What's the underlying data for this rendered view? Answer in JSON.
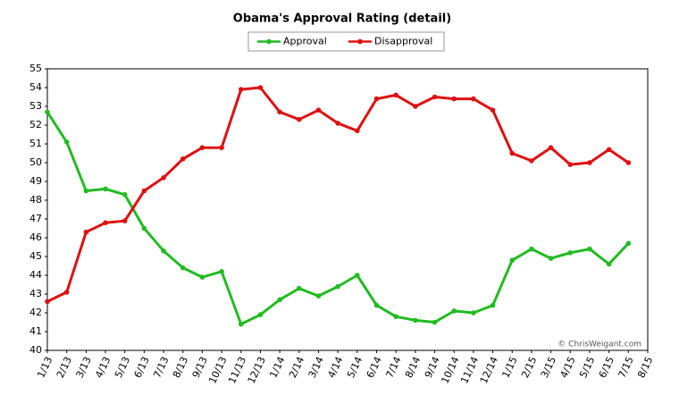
{
  "chart_data": {
    "type": "line",
    "title": "Obama's Approval Rating (detail)",
    "annotation": "© ChrisWeigant.com",
    "categories": [
      "1/13",
      "2/13",
      "3/13",
      "4/13",
      "5/13",
      "6/13",
      "7/13",
      "8/13",
      "9/13",
      "10/13",
      "11/13",
      "12/13",
      "1/14",
      "2/14",
      "3/14",
      "4/14",
      "5/14",
      "6/14",
      "7/14",
      "8/14",
      "9/14",
      "10/14",
      "11/14",
      "12/14",
      "1/15",
      "2/15",
      "3/15",
      "4/15",
      "5/15",
      "6/15",
      "7/15",
      "8/15"
    ],
    "series": [
      {
        "name": "Approval",
        "color": "#22bb22",
        "values": [
          52.7,
          51.1,
          48.5,
          48.6,
          48.3,
          46.5,
          45.3,
          44.4,
          43.9,
          44.2,
          41.4,
          41.9,
          42.7,
          43.3,
          42.9,
          43.4,
          44.0,
          42.4,
          41.8,
          41.6,
          41.5,
          42.1,
          42.0,
          42.4,
          44.8,
          45.4,
          44.9,
          45.2,
          45.4,
          44.6,
          45.7,
          null
        ]
      },
      {
        "name": "Disapproval",
        "color": "#dd1111",
        "values": [
          42.6,
          43.1,
          46.3,
          46.8,
          46.9,
          48.5,
          49.2,
          50.2,
          50.8,
          50.8,
          53.9,
          54.0,
          52.7,
          52.3,
          52.8,
          52.1,
          51.7,
          53.4,
          53.6,
          53.0,
          53.5,
          53.4,
          53.4,
          52.8,
          50.5,
          50.1,
          50.8,
          49.9,
          50.0,
          50.7,
          50.0,
          null
        ]
      }
    ],
    "ylim": [
      40,
      55
    ],
    "yticks": [
      40,
      41,
      42,
      43,
      44,
      45,
      46,
      47,
      48,
      49,
      50,
      51,
      52,
      53,
      54,
      55
    ],
    "grid": false,
    "legend": "top"
  }
}
